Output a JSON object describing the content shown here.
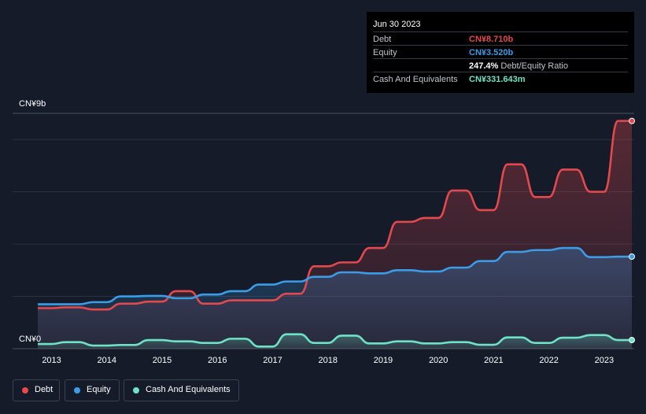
{
  "colors": {
    "debt": "#e5484d",
    "equity": "#3b9ce8",
    "cash": "#6ee2c6",
    "background": "#151b29"
  },
  "tooltip": {
    "date": "Jun 30 2023",
    "rows": [
      {
        "label": "Debt",
        "value": "CN¥8.710b",
        "color": "#e5484d",
        "suffix": ""
      },
      {
        "label": "Equity",
        "value": "CN¥3.520b",
        "color": "#3b9ce8",
        "suffix": ""
      },
      {
        "label": "",
        "value": "247.4%",
        "color": "#ffffff",
        "suffix": "Debt/Equity Ratio"
      },
      {
        "label": "Cash And Equivalents",
        "value": "CN¥331.643m",
        "color": "#6ee2c6",
        "suffix": ""
      }
    ]
  },
  "legend": [
    {
      "label": "Debt",
      "color": "#e5484d"
    },
    {
      "label": "Equity",
      "color": "#3b9ce8"
    },
    {
      "label": "Cash And Equivalents",
      "color": "#6ee2c6"
    }
  ],
  "chart_data": {
    "type": "area",
    "title": "",
    "xlabel": "",
    "ylabel": "",
    "y_tick_labels": [
      "CN¥9b",
      "CN¥0"
    ],
    "ylim": [
      0,
      9
    ],
    "xlim": [
      2012.75,
      2023.5
    ],
    "x_tick_labels": [
      "2013",
      "2014",
      "2015",
      "2016",
      "2017",
      "2018",
      "2019",
      "2020",
      "2021",
      "2022",
      "2023"
    ],
    "grid": true,
    "legend_position": "bottom-left",
    "series": [
      {
        "name": "Debt",
        "unit": "CN¥b",
        "points": [
          [
            2012.75,
            1.55
          ],
          [
            2013.0,
            1.55
          ],
          [
            2013.25,
            1.58
          ],
          [
            2013.5,
            1.58
          ],
          [
            2013.75,
            1.5
          ],
          [
            2014.0,
            1.5
          ],
          [
            2014.25,
            1.72
          ],
          [
            2014.5,
            1.72
          ],
          [
            2014.75,
            1.8
          ],
          [
            2015.0,
            1.8
          ],
          [
            2015.25,
            2.2
          ],
          [
            2015.5,
            2.2
          ],
          [
            2015.75,
            1.72
          ],
          [
            2016.0,
            1.72
          ],
          [
            2016.25,
            1.85
          ],
          [
            2016.5,
            1.85
          ],
          [
            2016.75,
            1.85
          ],
          [
            2017.0,
            1.85
          ],
          [
            2017.25,
            2.1
          ],
          [
            2017.5,
            2.1
          ],
          [
            2017.75,
            3.15
          ],
          [
            2018.0,
            3.15
          ],
          [
            2018.25,
            3.3
          ],
          [
            2018.5,
            3.3
          ],
          [
            2018.75,
            3.85
          ],
          [
            2019.0,
            3.85
          ],
          [
            2019.25,
            4.85
          ],
          [
            2019.5,
            4.85
          ],
          [
            2019.75,
            5.0
          ],
          [
            2020.0,
            5.0
          ],
          [
            2020.25,
            6.05
          ],
          [
            2020.5,
            6.05
          ],
          [
            2020.75,
            5.3
          ],
          [
            2021.0,
            5.3
          ],
          [
            2021.25,
            7.05
          ],
          [
            2021.5,
            7.05
          ],
          [
            2021.75,
            5.8
          ],
          [
            2022.0,
            5.8
          ],
          [
            2022.25,
            6.85
          ],
          [
            2022.5,
            6.85
          ],
          [
            2022.75,
            6.0
          ],
          [
            2023.0,
            6.0
          ],
          [
            2023.25,
            8.71
          ],
          [
            2023.5,
            8.71
          ]
        ]
      },
      {
        "name": "Equity",
        "unit": "CN¥b",
        "points": [
          [
            2012.75,
            1.7
          ],
          [
            2013.0,
            1.7
          ],
          [
            2013.25,
            1.7
          ],
          [
            2013.5,
            1.7
          ],
          [
            2013.75,
            1.78
          ],
          [
            2014.0,
            1.78
          ],
          [
            2014.25,
            2.0
          ],
          [
            2014.5,
            2.0
          ],
          [
            2014.75,
            2.02
          ],
          [
            2015.0,
            2.02
          ],
          [
            2015.25,
            1.93
          ],
          [
            2015.5,
            1.93
          ],
          [
            2015.75,
            2.07
          ],
          [
            2016.0,
            2.07
          ],
          [
            2016.25,
            2.2
          ],
          [
            2016.5,
            2.2
          ],
          [
            2016.75,
            2.45
          ],
          [
            2017.0,
            2.45
          ],
          [
            2017.25,
            2.57
          ],
          [
            2017.5,
            2.57
          ],
          [
            2017.75,
            2.75
          ],
          [
            2018.0,
            2.75
          ],
          [
            2018.25,
            2.92
          ],
          [
            2018.5,
            2.92
          ],
          [
            2018.75,
            2.88
          ],
          [
            2019.0,
            2.88
          ],
          [
            2019.25,
            3.0
          ],
          [
            2019.5,
            3.0
          ],
          [
            2019.75,
            2.95
          ],
          [
            2020.0,
            2.95
          ],
          [
            2020.25,
            3.1
          ],
          [
            2020.5,
            3.1
          ],
          [
            2020.75,
            3.35
          ],
          [
            2021.0,
            3.35
          ],
          [
            2021.25,
            3.7
          ],
          [
            2021.5,
            3.7
          ],
          [
            2021.75,
            3.77
          ],
          [
            2022.0,
            3.77
          ],
          [
            2022.25,
            3.85
          ],
          [
            2022.5,
            3.85
          ],
          [
            2022.75,
            3.5
          ],
          [
            2023.0,
            3.5
          ],
          [
            2023.25,
            3.52
          ],
          [
            2023.5,
            3.52
          ]
        ]
      },
      {
        "name": "Cash And Equivalents",
        "unit": "CN¥b",
        "points": [
          [
            2012.75,
            0.18
          ],
          [
            2013.0,
            0.18
          ],
          [
            2013.25,
            0.25
          ],
          [
            2013.5,
            0.25
          ],
          [
            2013.75,
            0.12
          ],
          [
            2014.0,
            0.12
          ],
          [
            2014.25,
            0.14
          ],
          [
            2014.5,
            0.14
          ],
          [
            2014.75,
            0.33
          ],
          [
            2015.0,
            0.33
          ],
          [
            2015.25,
            0.28
          ],
          [
            2015.5,
            0.28
          ],
          [
            2015.75,
            0.22
          ],
          [
            2016.0,
            0.22
          ],
          [
            2016.25,
            0.38
          ],
          [
            2016.5,
            0.38
          ],
          [
            2016.75,
            0.08
          ],
          [
            2017.0,
            0.08
          ],
          [
            2017.25,
            0.55
          ],
          [
            2017.5,
            0.55
          ],
          [
            2017.75,
            0.22
          ],
          [
            2018.0,
            0.22
          ],
          [
            2018.25,
            0.5
          ],
          [
            2018.5,
            0.5
          ],
          [
            2018.75,
            0.2
          ],
          [
            2019.0,
            0.2
          ],
          [
            2019.25,
            0.28
          ],
          [
            2019.5,
            0.28
          ],
          [
            2019.75,
            0.2
          ],
          [
            2020.0,
            0.2
          ],
          [
            2020.25,
            0.25
          ],
          [
            2020.5,
            0.25
          ],
          [
            2020.75,
            0.15
          ],
          [
            2021.0,
            0.15
          ],
          [
            2021.25,
            0.43
          ],
          [
            2021.5,
            0.43
          ],
          [
            2021.75,
            0.22
          ],
          [
            2022.0,
            0.22
          ],
          [
            2022.25,
            0.42
          ],
          [
            2022.5,
            0.42
          ],
          [
            2022.75,
            0.52
          ],
          [
            2023.0,
            0.52
          ],
          [
            2023.25,
            0.33
          ],
          [
            2023.5,
            0.33
          ]
        ]
      }
    ]
  }
}
